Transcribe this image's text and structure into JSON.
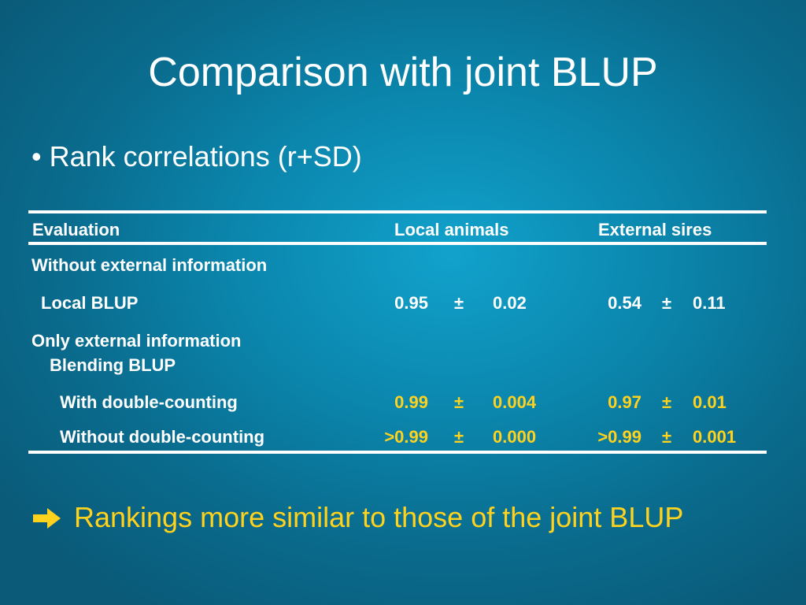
{
  "slide": {
    "title": "Comparison with joint BLUP",
    "bullet_glyph": "•",
    "bullet": "Rank correlations (r+SD)"
  },
  "table": {
    "headers": {
      "evaluation": "Evaluation",
      "local": "Local animals",
      "external": "External sires"
    },
    "sections": {
      "without_external": "Without external information",
      "only_external": "Only external information",
      "blending": "Blending BLUP"
    },
    "rows": [
      {
        "label": "Local BLUP",
        "local_r": "0.95",
        "local_pm": "±",
        "local_sd": "0.02",
        "ext_r": "0.54",
        "ext_pm": "±",
        "ext_sd": "0.11"
      },
      {
        "label": "With double-counting",
        "local_r": "0.99",
        "local_pm": "±",
        "local_sd": "0.004",
        "ext_r": "0.97",
        "ext_pm": "±",
        "ext_sd": "0.01"
      },
      {
        "label": "Without double-counting",
        "local_r": ">0.99",
        "local_pm": "±",
        "local_sd": "0.000",
        "ext_r": ">0.99",
        "ext_pm": "±",
        "ext_sd": "0.001"
      }
    ]
  },
  "conclusion": {
    "icon": "right-arrow-icon",
    "text": "Rankings more similar to those of the joint BLUP"
  },
  "colors": {
    "background": "#0b86ad",
    "text": "#ffffff",
    "highlight": "#ffd21e"
  }
}
